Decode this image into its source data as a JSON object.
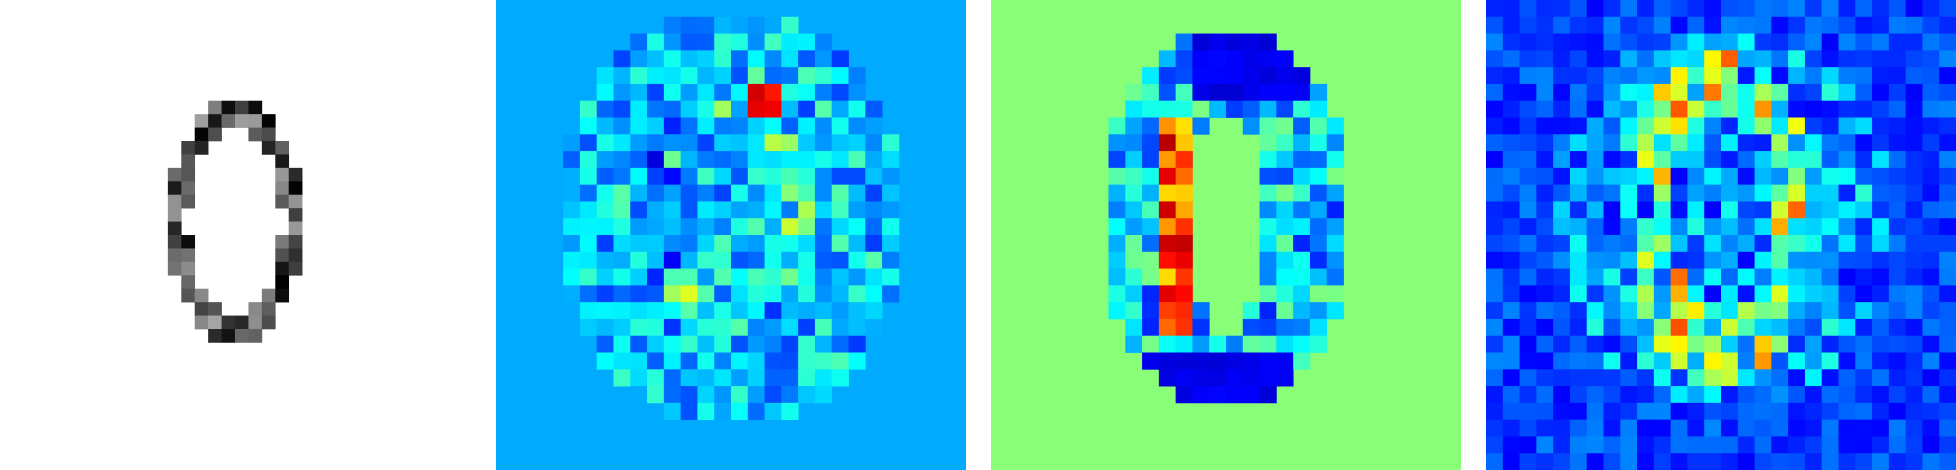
{
  "panels": [
    {
      "id": "input-digit-panel",
      "kind": "grayscale input image",
      "grid": 28,
      "background": "#ffffff",
      "pixel_fraction": 0.8
    },
    {
      "id": "heatmap-panel-1",
      "kind": "jet heatmap (near-neutral background)",
      "grid": 28,
      "background": "#00aaff",
      "colormap": "jet"
    },
    {
      "id": "heatmap-panel-2",
      "kind": "jet heatmap (digit-shaped attribution)",
      "grid": 28,
      "background": "#88ff77",
      "colormap": "jet"
    },
    {
      "id": "heatmap-panel-3",
      "kind": "jet heatmap (noisy attribution)",
      "grid": 28,
      "background": "#00007f",
      "colormap": "jet"
    }
  ]
}
